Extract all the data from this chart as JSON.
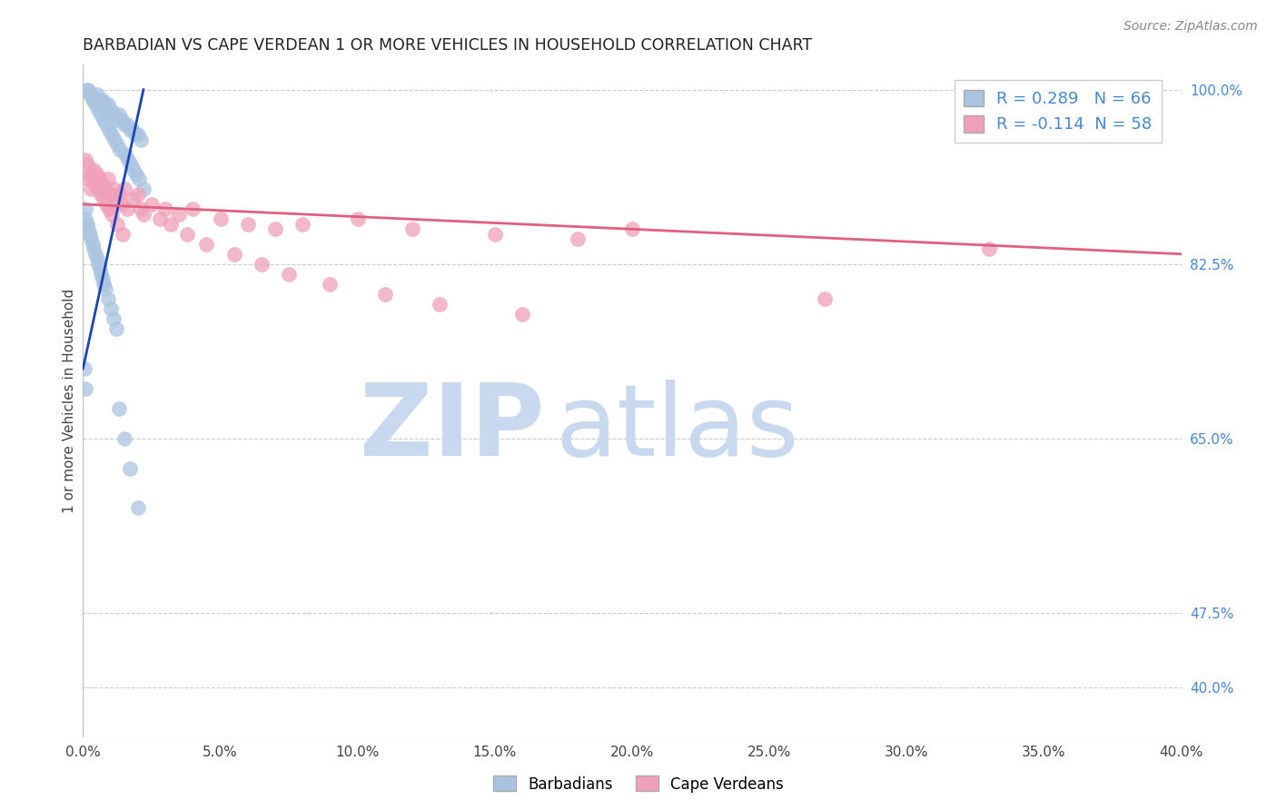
{
  "title": "BARBADIAN VS CAPE VERDEAN 1 OR MORE VEHICLES IN HOUSEHOLD CORRELATION CHART",
  "source": "Source: ZipAtlas.com",
  "ylabel": "1 or more Vehicles in Household",
  "legend_barbadian": "Barbadians",
  "legend_cape_verdean": "Cape Verdeans",
  "r_barbadian": 0.289,
  "n_barbadian": 66,
  "r_cape_verdean": -0.114,
  "n_cape_verdean": 58,
  "x_min": 0.0,
  "x_max": 40.0,
  "y_min": 35.0,
  "y_max": 102.5,
  "y_ticks": [
    40.0,
    47.5,
    65.0,
    82.5,
    100.0
  ],
  "x_ticks": [
    0.0,
    5.0,
    10.0,
    15.0,
    20.0,
    25.0,
    30.0,
    35.0,
    40.0
  ],
  "color_barbadian": "#aac4e0",
  "color_cape_verdean": "#f0a0b8",
  "color_barbadian_line": "#1a44bb",
  "color_cape_verdean_line": "#e06080",
  "color_right_axis": "#4488dd",
  "watermark_zip_color": "#c8d8ee",
  "watermark_atlas_color": "#c8d8ee",
  "background_color": "#ffffff",
  "barbadian_x": [
    0.2,
    0.3,
    0.4,
    0.5,
    0.6,
    0.7,
    0.8,
    0.9,
    1.0,
    1.1,
    1.2,
    1.3,
    1.4,
    1.5,
    1.6,
    1.7,
    1.8,
    1.9,
    2.0,
    2.1,
    0.15,
    0.25,
    0.35,
    0.45,
    0.55,
    0.65,
    0.75,
    0.85,
    0.95,
    1.05,
    1.15,
    1.25,
    1.35,
    1.55,
    1.65,
    1.75,
    1.85,
    1.95,
    2.05,
    2.2,
    0.1,
    0.1,
    0.15,
    0.2,
    0.25,
    0.3,
    0.35,
    0.4,
    0.45,
    0.5,
    0.55,
    0.6,
    0.65,
    0.7,
    0.75,
    0.8,
    0.9,
    1.0,
    1.1,
    1.2,
    0.05,
    0.08,
    1.3,
    1.5,
    1.7,
    2.0
  ],
  "barbadian_y": [
    100.0,
    99.5,
    99.0,
    99.5,
    99.0,
    99.0,
    98.5,
    98.5,
    98.0,
    97.5,
    97.0,
    97.5,
    97.0,
    96.5,
    96.5,
    96.0,
    96.0,
    95.5,
    95.5,
    95.0,
    100.0,
    99.5,
    99.0,
    98.5,
    98.0,
    97.5,
    97.0,
    96.5,
    96.0,
    95.5,
    95.0,
    94.5,
    94.0,
    93.5,
    93.0,
    92.5,
    92.0,
    91.5,
    91.0,
    90.0,
    88.0,
    87.0,
    86.5,
    86.0,
    85.5,
    85.0,
    84.5,
    84.0,
    83.5,
    83.0,
    82.5,
    82.0,
    81.5,
    81.0,
    80.5,
    80.0,
    79.0,
    78.0,
    77.0,
    76.0,
    72.0,
    70.0,
    68.0,
    65.0,
    62.0,
    58.0
  ],
  "cape_verdean_x": [
    0.1,
    0.2,
    0.3,
    0.5,
    0.7,
    0.9,
    1.1,
    1.3,
    1.5,
    1.8,
    2.0,
    2.5,
    3.0,
    3.5,
    4.0,
    5.0,
    6.0,
    7.0,
    8.0,
    10.0,
    12.0,
    15.0,
    18.0,
    20.0,
    0.4,
    0.6,
    0.8,
    1.0,
    1.2,
    1.4,
    1.6,
    2.2,
    2.8,
    3.2,
    3.8,
    4.5,
    5.5,
    6.5,
    7.5,
    9.0,
    11.0,
    13.0,
    16.0,
    0.15,
    0.25,
    0.35,
    0.45,
    0.55,
    0.65,
    0.75,
    0.85,
    0.95,
    1.05,
    1.25,
    1.45,
    2.1,
    27.0,
    33.0
  ],
  "cape_verdean_y": [
    93.0,
    91.0,
    90.0,
    91.5,
    90.5,
    91.0,
    90.0,
    89.5,
    90.0,
    89.0,
    89.5,
    88.5,
    88.0,
    87.5,
    88.0,
    87.0,
    86.5,
    86.0,
    86.5,
    87.0,
    86.0,
    85.5,
    85.0,
    86.0,
    92.0,
    91.0,
    90.0,
    89.5,
    89.0,
    88.5,
    88.0,
    87.5,
    87.0,
    86.5,
    85.5,
    84.5,
    83.5,
    82.5,
    81.5,
    80.5,
    79.5,
    78.5,
    77.5,
    92.5,
    91.5,
    91.0,
    90.5,
    90.0,
    89.5,
    89.0,
    88.5,
    88.0,
    87.5,
    86.5,
    85.5,
    88.0,
    79.0,
    84.0
  ],
  "blue_line_x": [
    0.0,
    2.2
  ],
  "blue_line_y": [
    72.0,
    100.0
  ],
  "pink_line_x": [
    0.0,
    40.0
  ],
  "pink_line_y": [
    88.5,
    83.5
  ]
}
